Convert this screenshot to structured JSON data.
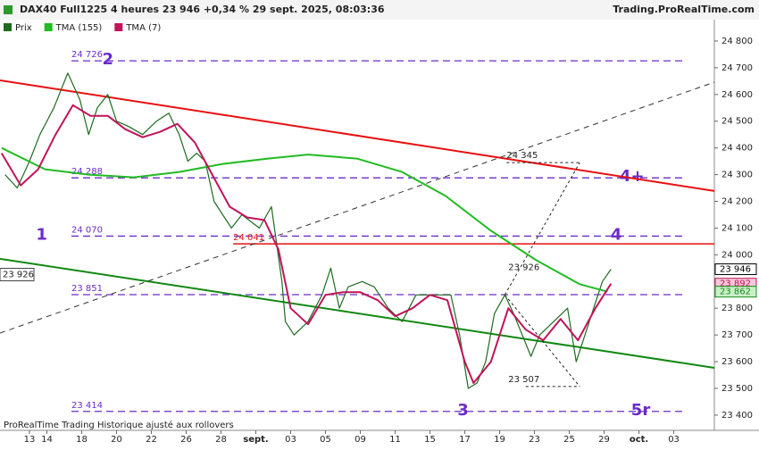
{
  "chart_data": {
    "type": "line",
    "title": "DAX40 Full1225 4 heures 23 946 +0,34 % 29 sept. 2025, 08:03:36",
    "source": "Trading.ProRealTime.com",
    "footer": "ProRealTime Trading  Historique ajusté aux rollovers",
    "xlim": [
      -1.69,
      39.33
    ],
    "ylim": [
      23343,
      24880
    ],
    "xticks": [
      {
        "value": 0,
        "label": "13"
      },
      {
        "value": 1,
        "label": "14"
      },
      {
        "value": 3,
        "label": "18"
      },
      {
        "value": 5,
        "label": "20"
      },
      {
        "value": 7,
        "label": "22"
      },
      {
        "value": 9,
        "label": "26"
      },
      {
        "value": 11,
        "label": "28"
      },
      {
        "value": 13,
        "label": "sept."
      },
      {
        "value": 15,
        "label": "03"
      },
      {
        "value": 17,
        "label": "05"
      },
      {
        "value": 19,
        "label": "09"
      },
      {
        "value": 21,
        "label": "11"
      },
      {
        "value": 23,
        "label": "15"
      },
      {
        "value": 25,
        "label": "17"
      },
      {
        "value": 27,
        "label": "19"
      },
      {
        "value": 29,
        "label": "23"
      },
      {
        "value": 31,
        "label": "25"
      },
      {
        "value": 33,
        "label": "29"
      },
      {
        "value": 35,
        "label": "oct."
      },
      {
        "value": 37,
        "label": "03"
      }
    ],
    "yticks": [
      {
        "value": 23400,
        "label": "23 400"
      },
      {
        "value": 23500,
        "label": "23 500"
      },
      {
        "value": 23600,
        "label": "23 600"
      },
      {
        "value": 23700,
        "label": "23 700"
      },
      {
        "value": 23800,
        "label": "23 800"
      },
      {
        "value": 23900,
        "label": "23 900"
      },
      {
        "value": 24000,
        "label": "24 000"
      },
      {
        "value": 24100,
        "label": "24 100"
      },
      {
        "value": 24200,
        "label": "24 200"
      },
      {
        "value": 24300,
        "label": "24 300"
      },
      {
        "value": 24400,
        "label": "24 400"
      },
      {
        "value": 24500,
        "label": "24 500"
      },
      {
        "value": 24600,
        "label": "24 600"
      },
      {
        "value": 24700,
        "label": "24 700"
      },
      {
        "value": 24800,
        "label": "24 800"
      }
    ],
    "series": [
      {
        "name": "Prix",
        "color": "#1f6b1f",
        "width": 1.2,
        "x": [
          -1.4,
          -0.7,
          0,
          0.6,
          1.4,
          2.2,
          2.9,
          3.4,
          3.9,
          4.5,
          5,
          5.7,
          6.5,
          7.3,
          8,
          8.6,
          9.1,
          9.6,
          10.1,
          10.6,
          11.1,
          11.6,
          12.2,
          13.2,
          13.9,
          14.5,
          14.7,
          15.2,
          16,
          16.8,
          17.3,
          17.8,
          18.3,
          19.1,
          19.8,
          20.6,
          21.4,
          22.2,
          22.9,
          23.7,
          24.2,
          24.7,
          25.2,
          25.7,
          26.2,
          26.7,
          27.3,
          27.8,
          28.3,
          28.8,
          29.3,
          30.1,
          30.9,
          31.4,
          31.9,
          32.4,
          32.9,
          33.4
        ],
        "values": [
          24300,
          24250,
          24350,
          24450,
          24550,
          24680,
          24580,
          24450,
          24550,
          24600,
          24500,
          24480,
          24450,
          24500,
          24530,
          24450,
          24350,
          24380,
          24350,
          24200,
          24150,
          24100,
          24150,
          24100,
          24180,
          23900,
          23750,
          23700,
          23750,
          23850,
          23950,
          23800,
          23880,
          23900,
          23880,
          23800,
          23750,
          23850,
          23850,
          23850,
          23850,
          23700,
          23500,
          23520,
          23600,
          23780,
          23850,
          23780,
          23700,
          23620,
          23700,
          23750,
          23800,
          23600,
          23700,
          23800,
          23900,
          23946
        ]
      },
      {
        "name": "TMA (155)",
        "color": "#22bb22",
        "width": 2,
        "x": [
          -1.6,
          0.9,
          3.4,
          6,
          8.6,
          11.1,
          13.7,
          16,
          18.8,
          21.4,
          23.9,
          26.5,
          29.1,
          31.6,
          33.2
        ],
        "values": [
          24400,
          24320,
          24300,
          24290,
          24310,
          24340,
          24360,
          24375,
          24360,
          24310,
          24220,
          24090,
          23980,
          23890,
          23862
        ]
      },
      {
        "name": "TMA (7)",
        "color": "#c0145a",
        "width": 2,
        "x": [
          -1.6,
          -0.5,
          0.5,
          1.5,
          2.5,
          3.5,
          4.5,
          5.5,
          6.5,
          7.5,
          8.5,
          9.5,
          10.5,
          11.5,
          12.5,
          13.5,
          14.3,
          15,
          16,
          17,
          18,
          19,
          20,
          21,
          22,
          23,
          24,
          25,
          25.5,
          26.5,
          27.5,
          28.5,
          29.5,
          30.5,
          31.5,
          32.5,
          33.4
        ],
        "values": [
          24380,
          24260,
          24320,
          24450,
          24560,
          24520,
          24520,
          24470,
          24440,
          24460,
          24490,
          24420,
          24300,
          24180,
          24140,
          24130,
          24020,
          23800,
          23740,
          23850,
          23860,
          23860,
          23830,
          23770,
          23800,
          23850,
          23830,
          23600,
          23520,
          23600,
          23800,
          23720,
          23680,
          23760,
          23680,
          23800,
          23892
        ]
      }
    ],
    "levels": [
      {
        "value": 24726,
        "label": "24 726",
        "tags": [
          {
            "text": "2",
            "x": 4.5
          }
        ]
      },
      {
        "value": 24288,
        "label": "24 288",
        "tags": [
          {
            "text": "4+",
            "x": 34.6
          }
        ]
      },
      {
        "value": 24070,
        "label": "24 070",
        "tags": [
          {
            "text": "1",
            "x": 0.7
          },
          {
            "text": "4",
            "x": 33.7
          }
        ]
      },
      {
        "value": 23851,
        "label": "23 851",
        "tags": []
      },
      {
        "value": 23414,
        "label": "23 414",
        "tags": [
          {
            "text": "3",
            "x": 24.9
          },
          {
            "text": "5r",
            "x": 35.1
          }
        ]
      }
    ],
    "resistance": {
      "value": 24041,
      "label": "24 041",
      "x": [
        11.7,
        39.33
      ],
      "color": "#e81010"
    },
    "trendlines": [
      {
        "color": "#e81010",
        "x": [
          -1.69,
          39.33
        ],
        "y": [
          24653,
          24239
        ],
        "dash": ""
      },
      {
        "color": "#118811",
        "x": [
          -1.69,
          39.33
        ],
        "y": [
          23985,
          23577
        ],
        "dash": ""
      },
      {
        "color": "#333333",
        "x": [
          -1.69,
          39.33
        ],
        "y": [
          23707,
          24646
        ],
        "dash": "6,5"
      }
    ],
    "guides": [
      {
        "x": [
          27.3,
          31.6
        ],
        "y": [
          23850,
          24345
        ]
      },
      {
        "x": [
          27.4,
          31.6
        ],
        "y": [
          24345,
          24345
        ]
      },
      {
        "x": [
          27.3,
          31.6
        ],
        "y": [
          23850,
          23507
        ]
      },
      {
        "x": [
          28.5,
          31.6
        ],
        "y": [
          23507,
          23507
        ]
      }
    ],
    "annotations": [
      {
        "text": "24 345",
        "x": 27.4,
        "y": 24345
      },
      {
        "text": "23 926",
        "x": 27.5,
        "y": 23926
      },
      {
        "text": "23 507",
        "x": 27.5,
        "y": 23507
      }
    ],
    "left_tag": {
      "value": 23926,
      "label": "23 926"
    },
    "price_tags": [
      {
        "value": 23946,
        "label": "23 946",
        "color": "#000000",
        "bg": "#ffffff"
      },
      {
        "value": 23892,
        "label": "23 892",
        "color": "#c0145a",
        "bg": "#f7c8da"
      },
      {
        "value": 23862,
        "label": "23 862",
        "color": "#1a8a1a",
        "bg": "#c8f0c8"
      }
    ]
  }
}
